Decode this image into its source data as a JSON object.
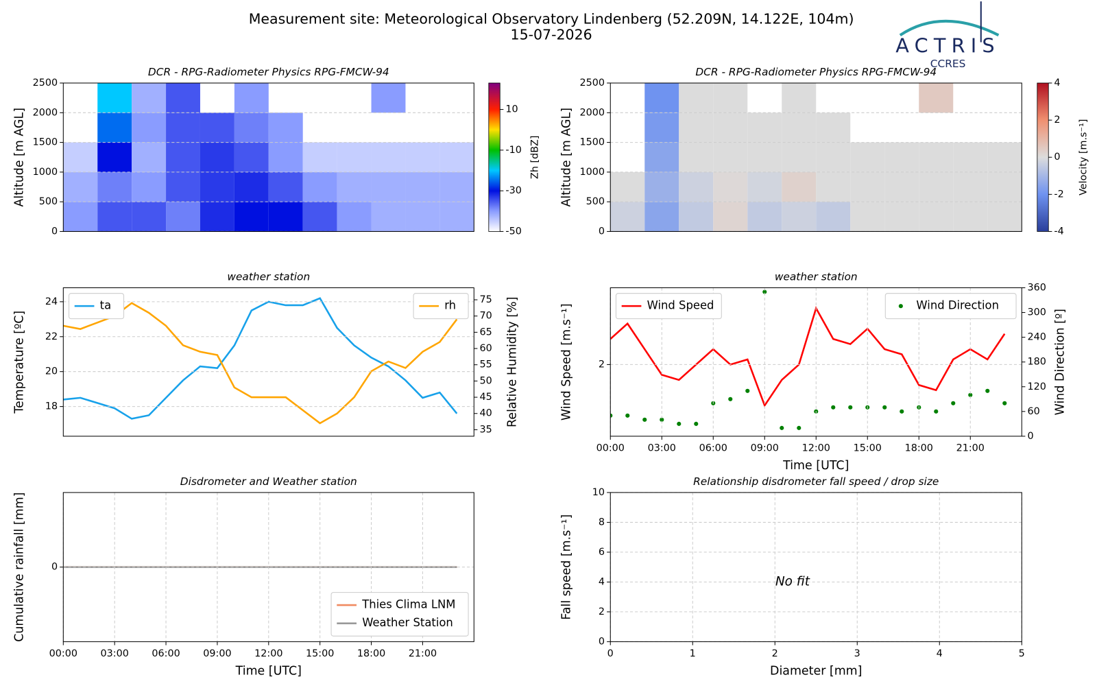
{
  "header": {
    "title": "Measurement site: Meteorological Observatory Lindenberg (52.209N, 14.122E, 104m)",
    "date": "15-07-2026"
  },
  "logo": {
    "name": "ACTRIS",
    "sub": "CCRES"
  },
  "chart_data": [
    {
      "type": "heatmap",
      "title": "DCR - RPG-Radiometer Physics RPG-FMCW-94",
      "ylabel": "Altitude [m AGL]",
      "xlim": [
        0,
        24
      ],
      "ylim": [
        0,
        2500
      ],
      "yticks": [
        0,
        500,
        1000,
        1500,
        2000,
        2500
      ],
      "grid": true,
      "x_edges": [
        0,
        2,
        4,
        6,
        8,
        10,
        12,
        14,
        16,
        18,
        20,
        22,
        24
      ],
      "y_edges": [
        0,
        500,
        1000,
        1500,
        2000,
        2500
      ],
      "z": [
        [
          -40,
          -35,
          -35,
          -38,
          -32,
          -30,
          -30,
          -35,
          -40,
          -42,
          -42,
          -42
        ],
        [
          -42,
          -38,
          -40,
          -35,
          -33,
          -32,
          -35,
          -40,
          -42,
          -42,
          -42,
          -42
        ],
        [
          -45,
          -30,
          -42,
          -35,
          -33,
          -35,
          -40,
          -45,
          -45,
          -45,
          -45,
          -45
        ],
        [
          null,
          -25,
          -40,
          -35,
          -35,
          -38,
          -40,
          null,
          null,
          null,
          null,
          null
        ],
        [
          null,
          -20,
          -42,
          -35,
          null,
          -40,
          null,
          null,
          null,
          -40,
          null,
          null
        ]
      ],
      "clim": [
        -50,
        23
      ],
      "colorbar_ticks": [
        -50,
        -30,
        -10,
        10
      ],
      "colorbar_label": "Zh [dBZ]",
      "colorscale": [
        {
          "value": -50,
          "color": "#ffffff"
        },
        {
          "value": -40,
          "color": "#8a9cff"
        },
        {
          "value": -30,
          "color": "#0010e0"
        },
        {
          "value": -20,
          "color": "#00c8ff"
        },
        {
          "value": -10,
          "color": "#00c000"
        },
        {
          "value": 0,
          "color": "#ffe000"
        },
        {
          "value": 10,
          "color": "#ff2000"
        },
        {
          "value": 23,
          "color": "#800080"
        }
      ]
    },
    {
      "type": "heatmap",
      "title": "DCR - RPG-Radiometer Physics RPG-FMCW-94",
      "ylabel": "Altitude [m AGL]",
      "xlim": [
        0,
        24
      ],
      "ylim": [
        0,
        2500
      ],
      "yticks": [
        0,
        500,
        1000,
        1500,
        2000,
        2500
      ],
      "grid": true,
      "x_edges": [
        0,
        2,
        4,
        6,
        8,
        10,
        12,
        14,
        16,
        18,
        20,
        22,
        24
      ],
      "y_edges": [
        0,
        500,
        1000,
        1500,
        2000,
        2500
      ],
      "z": [
        [
          -0.3,
          -1.5,
          -0.5,
          0.2,
          -0.5,
          -0.3,
          -0.5,
          0,
          0,
          0,
          0,
          0
        ],
        [
          0,
          -1.2,
          -0.3,
          0.1,
          -0.2,
          0.3,
          0,
          0,
          0,
          0,
          0,
          0
        ],
        [
          null,
          -1.5,
          0,
          0,
          0,
          0,
          0,
          0,
          0,
          0,
          0,
          0
        ],
        [
          null,
          -1.8,
          0,
          0,
          0,
          0,
          0,
          null,
          null,
          null,
          null,
          null
        ],
        [
          null,
          -2,
          0,
          0,
          null,
          0,
          null,
          null,
          null,
          0.5,
          null,
          null
        ]
      ],
      "clim": [
        -4,
        4
      ],
      "colorbar_ticks": [
        -4,
        -2,
        0,
        2,
        4
      ],
      "colorbar_label": "Velocity [m.s⁻¹]",
      "colorscale": [
        {
          "value": -4,
          "color": "#2a3e9a"
        },
        {
          "value": -2,
          "color": "#6f93f0"
        },
        {
          "value": 0,
          "color": "#dcdcdc"
        },
        {
          "value": 2,
          "color": "#f09070"
        },
        {
          "value": 4,
          "color": "#b01020"
        }
      ]
    },
    {
      "type": "line",
      "title": "weather station",
      "ylabel": "Temperature [ºC]",
      "y2label": "Relative Humidity [%]",
      "xlim": [
        0,
        24
      ],
      "ylim": [
        16.3,
        24.8
      ],
      "yticks": [
        18,
        20,
        22,
        24
      ],
      "y2lim": [
        33,
        78.7
      ],
      "y2ticks": [
        35,
        40,
        45,
        50,
        55,
        60,
        65,
        70,
        75
      ],
      "grid": true,
      "legend": "upper left",
      "legend2": "upper right",
      "x": [
        0,
        1,
        2,
        3,
        4,
        5,
        6,
        7,
        8,
        9,
        10,
        11,
        12,
        13,
        14,
        15,
        16,
        17,
        18,
        19,
        20,
        21,
        22,
        23
      ],
      "series": [
        {
          "name": "ta",
          "color": "#17a1ea",
          "values": [
            18.4,
            18.5,
            18.2,
            17.9,
            17.3,
            17.5,
            18.5,
            19.5,
            20.3,
            20.2,
            21.5,
            23.5,
            24,
            23.8,
            23.8,
            24.2,
            22.5,
            21.5,
            20.8,
            20.3,
            19.5,
            18.5,
            18.8,
            17.6
          ]
        },
        {
          "name": "rh",
          "color": "#ffa500",
          "axis": "y2",
          "values": [
            67,
            66,
            68,
            70,
            74,
            71,
            67,
            61,
            59,
            58,
            48,
            45,
            45,
            45,
            41,
            37,
            40,
            45,
            53,
            56,
            54,
            59,
            62,
            69
          ]
        }
      ]
    },
    {
      "type": "line",
      "title": "weather station",
      "ylabel": "Wind Speed [m.s⁻¹]",
      "y2label": "Wind Direction [º]",
      "xlabel": "Time [UTC]",
      "xlim": [
        0,
        24
      ],
      "ylim": [
        0.6,
        3.5
      ],
      "yticks": [
        2
      ],
      "y2lim": [
        0,
        360
      ],
      "y2ticks": [
        0,
        60,
        120,
        180,
        240,
        300,
        360
      ],
      "xticks": [
        {
          "value": 0,
          "label": "00:00"
        },
        {
          "value": 3,
          "label": "03:00"
        },
        {
          "value": 6,
          "label": "06:00"
        },
        {
          "value": 9,
          "label": "09:00"
        },
        {
          "value": 12,
          "label": "12:00"
        },
        {
          "value": 15,
          "label": "15:00"
        },
        {
          "value": 18,
          "label": "18:00"
        },
        {
          "value": 21,
          "label": "21:00"
        }
      ],
      "grid": true,
      "legend": "upper left",
      "legend2": "upper right",
      "x": [
        0,
        1,
        2,
        3,
        4,
        5,
        6,
        7,
        8,
        9,
        10,
        11,
        12,
        13,
        14,
        15,
        16,
        17,
        18,
        19,
        20,
        21,
        22,
        23
      ],
      "series": [
        {
          "name": "Wind Speed",
          "color": "#ff0000",
          "values": [
            2.5,
            2.8,
            2.3,
            1.8,
            1.7,
            2.0,
            2.3,
            2.0,
            2.1,
            1.2,
            1.7,
            2.0,
            3.1,
            2.5,
            2.4,
            2.7,
            2.3,
            2.2,
            1.6,
            1.5,
            2.1,
            2.3,
            2.1,
            2.6
          ]
        },
        {
          "name": "Wind Direction",
          "color": "#008000",
          "axis": "y2",
          "style": "points",
          "values": [
            50,
            50,
            40,
            40,
            30,
            30,
            80,
            90,
            110,
            350,
            20,
            20,
            60,
            70,
            70,
            70,
            70,
            60,
            70,
            60,
            80,
            100,
            110,
            80
          ]
        }
      ]
    },
    {
      "type": "line",
      "title": "Disdrometer and Weather station",
      "ylabel": "Cumulative rainfall [mm]",
      "xlabel": "Time [UTC]",
      "xlim": [
        0,
        24
      ],
      "ylim": [
        -1,
        1
      ],
      "yticks": [
        0
      ],
      "xticks": [
        {
          "value": 0,
          "label": "00:00"
        },
        {
          "value": 3,
          "label": "03:00"
        },
        {
          "value": 6,
          "label": "06:00"
        },
        {
          "value": 9,
          "label": "09:00"
        },
        {
          "value": 12,
          "label": "12:00"
        },
        {
          "value": 15,
          "label": "15:00"
        },
        {
          "value": 18,
          "label": "18:00"
        },
        {
          "value": 21,
          "label": "21:00"
        }
      ],
      "grid": true,
      "legend": "lower right",
      "x": [
        0,
        23
      ],
      "series": [
        {
          "name": "Thies Clima LNM",
          "color": "#f08a60",
          "values": [
            0,
            0
          ]
        },
        {
          "name": "Weather Station",
          "color": "#999999",
          "values": [
            0,
            0
          ]
        }
      ]
    },
    {
      "type": "scatter",
      "title": "Relationship disdrometer fall speed / drop size",
      "ylabel": "Fall speed [m.s⁻¹]",
      "xlabel": "Diameter [mm]",
      "xlim": [
        0,
        5
      ],
      "ylim": [
        0,
        10
      ],
      "xticks": [
        0,
        1,
        2,
        3,
        4,
        5
      ],
      "yticks": [
        0,
        2,
        4,
        6,
        8,
        10
      ],
      "grid": true,
      "annotation": "No fit",
      "series": []
    }
  ]
}
